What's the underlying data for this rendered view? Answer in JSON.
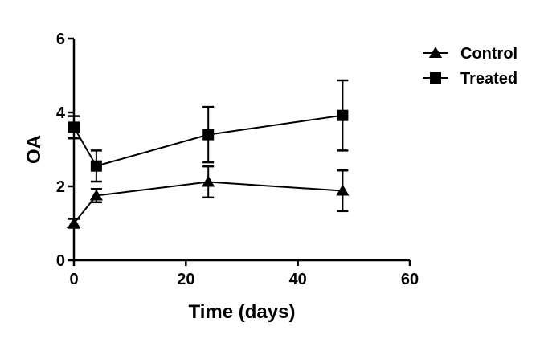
{
  "chart_data": {
    "type": "line",
    "title": "",
    "xlabel": "Time (days)",
    "ylabel": "OA",
    "xlim": [
      0,
      60
    ],
    "ylim": [
      0,
      6
    ],
    "x_ticks": [
      0,
      20,
      40,
      60
    ],
    "y_ticks": [
      0,
      2,
      4,
      6
    ],
    "x_tick_labels": [
      "0",
      "20",
      "40",
      "60"
    ],
    "y_tick_labels": [
      "0",
      "2",
      "4",
      "6"
    ],
    "grid": false,
    "legend_position": "top-right",
    "series": [
      {
        "name": "Control",
        "marker": "triangle",
        "color": "#000000",
        "x": [
          0,
          4,
          24,
          48
        ],
        "y": [
          1.0,
          1.75,
          2.12,
          1.88
        ],
        "error": [
          0.12,
          0.18,
          0.42,
          0.55
        ]
      },
      {
        "name": "Treated",
        "marker": "square",
        "color": "#000000",
        "x": [
          0,
          4,
          24,
          48
        ],
        "y": [
          3.6,
          2.55,
          3.4,
          3.92
        ],
        "error": [
          0.3,
          0.42,
          0.75,
          0.95
        ]
      }
    ]
  }
}
